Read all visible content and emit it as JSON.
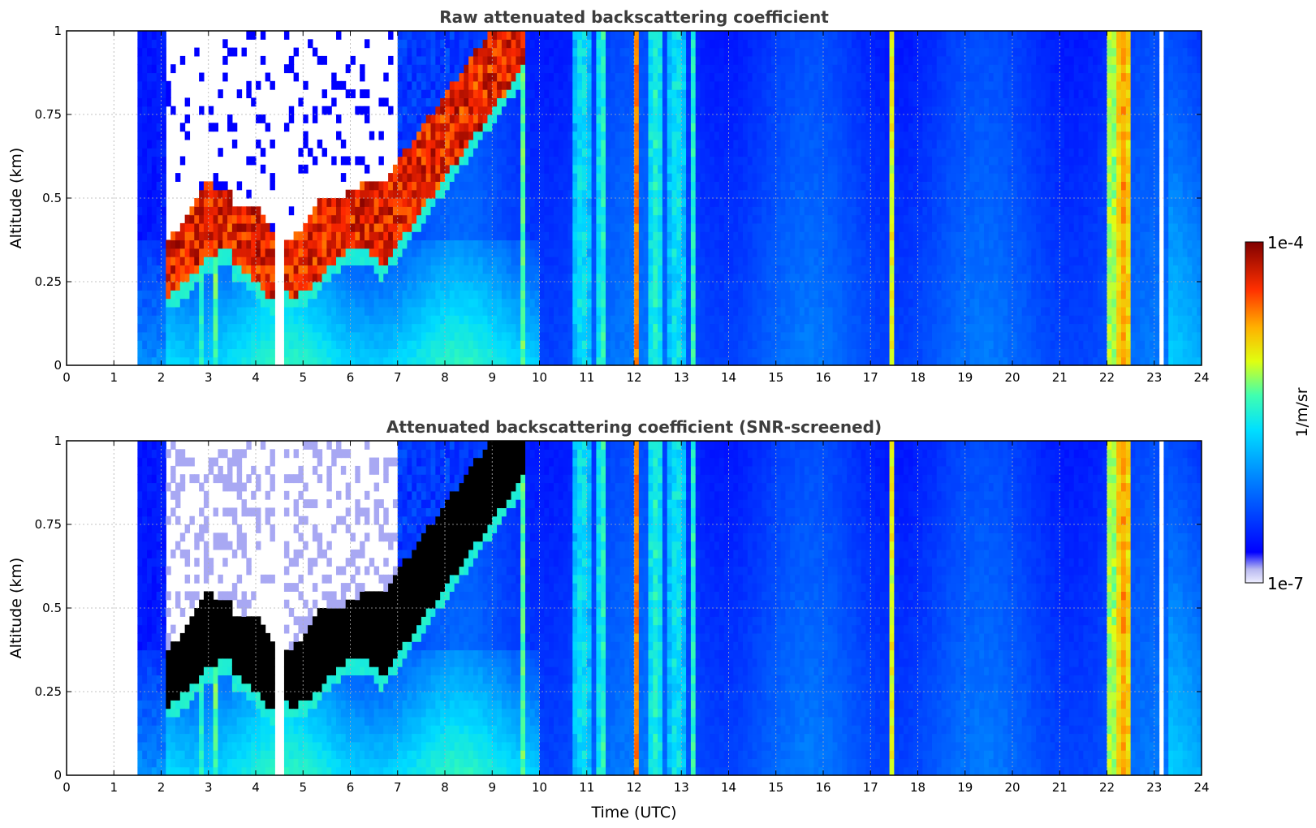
{
  "chart_data": [
    {
      "type": "heatmap",
      "title": "Raw attenuated backscattering coefficient",
      "ylabel": "Altitude (km)",
      "xlabel": "",
      "xlim": [
        0,
        24
      ],
      "ylim": [
        0,
        1
      ],
      "x_ticks": [
        "0",
        "1",
        "2",
        "3",
        "4",
        "5",
        "6",
        "7",
        "8",
        "9",
        "10",
        "11",
        "12",
        "13",
        "14",
        "15",
        "16",
        "17",
        "18",
        "19",
        "20",
        "21",
        "22",
        "23",
        "24"
      ],
      "y_ticks": [
        "0",
        "0.25",
        "0.5",
        "0.75",
        "1"
      ],
      "grid": true,
      "data_start_time": 1.55,
      "features": {
        "cloud_layer": "dense layer between ~0.2 and ~0.6 km from 2.1 to 6.6 UTC rising to ~1 km by 9.7 UTC",
        "high_columns_hours": [
          12.05,
          17.45,
          22.3
        ]
      }
    },
    {
      "type": "heatmap",
      "title": "Attenuated backscattering coefficient (SNR-screened)",
      "ylabel": "Altitude (km)",
      "xlabel": "Time (UTC)",
      "xlim": [
        0,
        24
      ],
      "ylim": [
        0,
        1
      ],
      "x_ticks": [
        "0",
        "1",
        "2",
        "3",
        "4",
        "5",
        "6",
        "7",
        "8",
        "9",
        "10",
        "11",
        "12",
        "13",
        "14",
        "15",
        "16",
        "17",
        "18",
        "19",
        "20",
        "21",
        "22",
        "23",
        "24"
      ],
      "y_ticks": [
        "0",
        "0.25",
        "0.5",
        "0.75",
        "1"
      ],
      "grid": true,
      "data_start_time": 1.55
    }
  ],
  "colorbar": {
    "label": "1/m/sr",
    "max_label": "1e-4",
    "min_label": "1e-7",
    "scale": "log",
    "colormap": "jet"
  }
}
